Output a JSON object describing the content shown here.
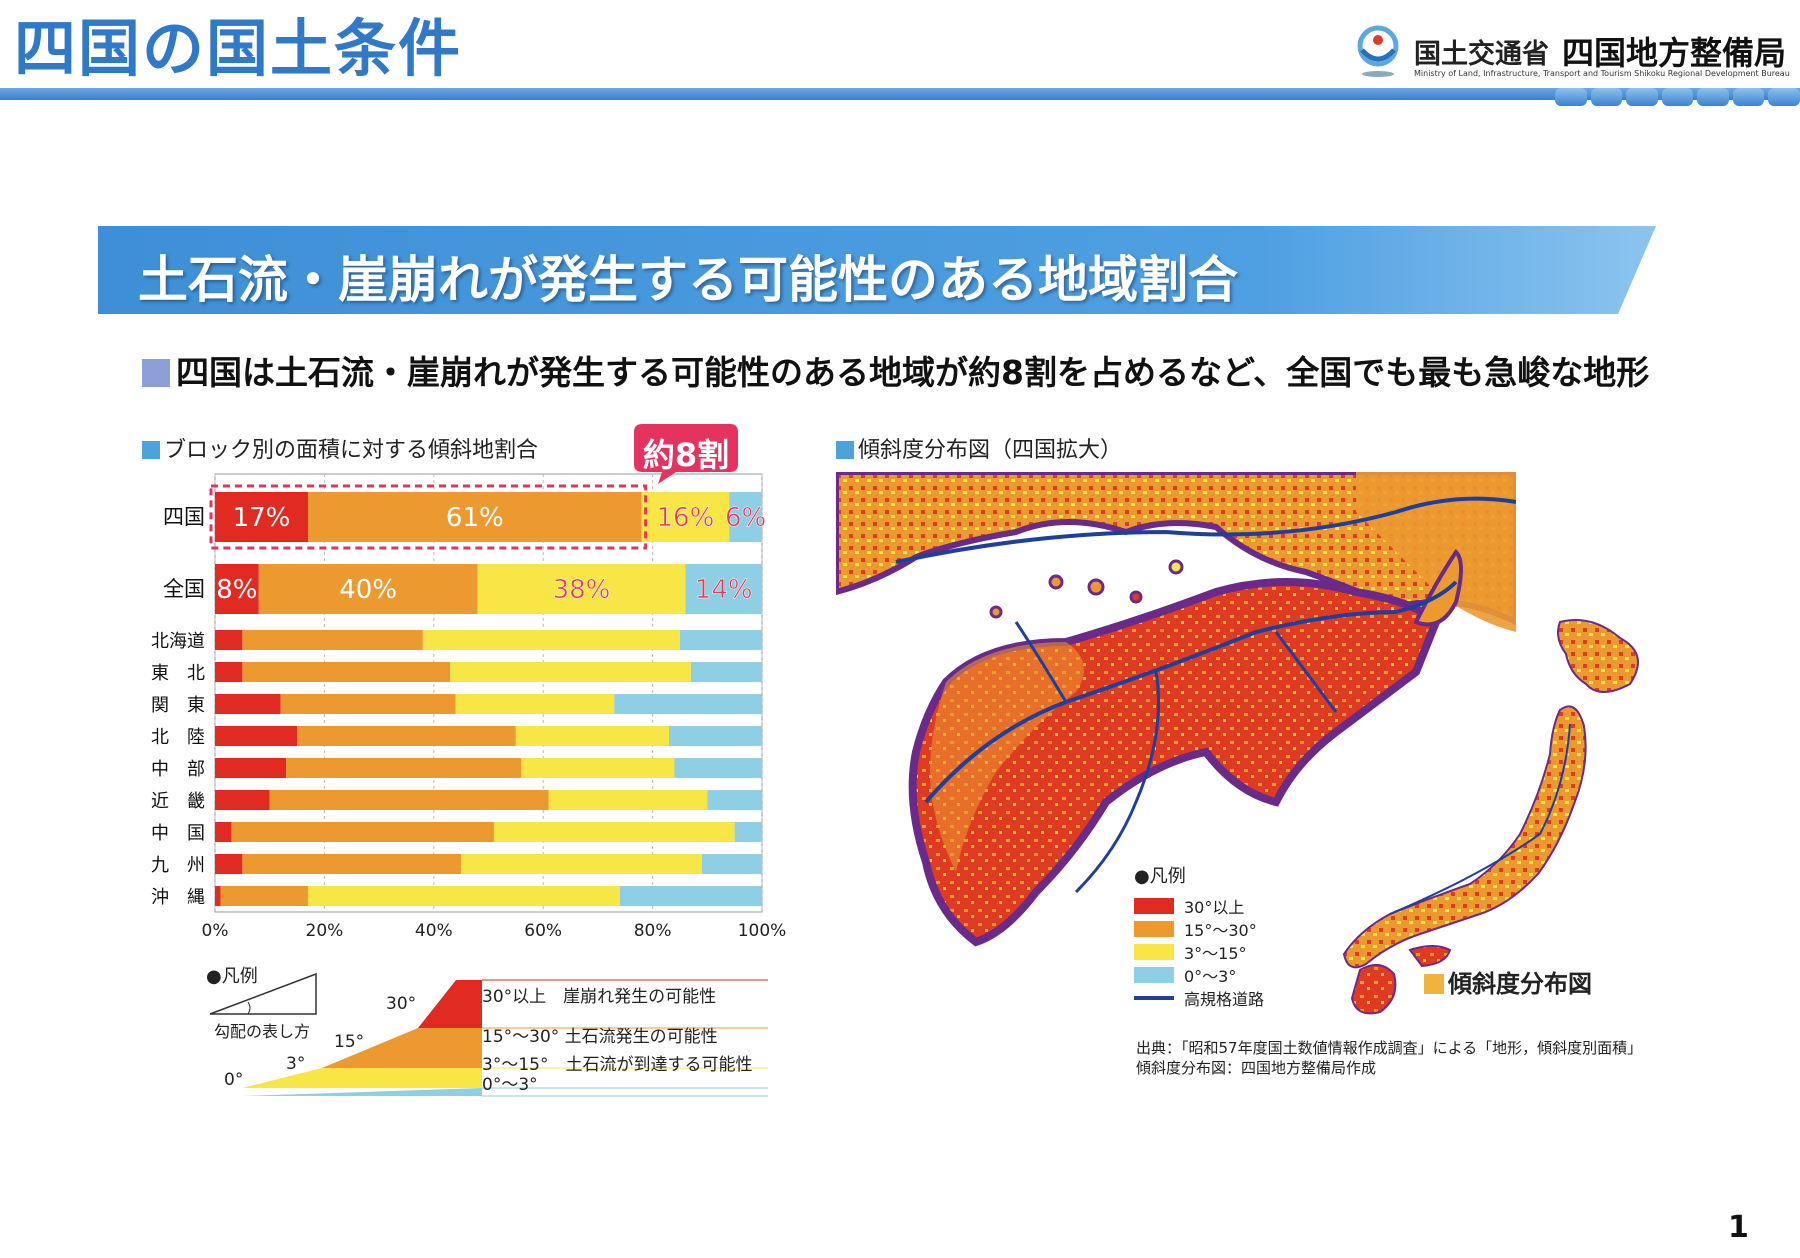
{
  "header": {
    "title": "四国の国土条件",
    "ministry": "国土交通省",
    "bureau": "四国地方整備局",
    "bureau_english": "Ministry of Land, Infrastructure, Transport and Tourism Shikoku Regional Development Bureau"
  },
  "banner": {
    "text": "土石流・崖崩れが発生する可能性のある地域割合"
  },
  "lead": {
    "text": "四国は土石流・崖崩れが発生する可能性のある地域が約8割を占めるなど、全国でも最も急峻な地形"
  },
  "left_panel": {
    "title": "ブロック別の面積に対する傾斜地割合",
    "callout": "約8割"
  },
  "right_panel": {
    "title": "傾斜度分布図（四国拡大）",
    "japan_label": "傾斜度分布図"
  },
  "chart_data": {
    "type": "bar",
    "orientation": "horizontal",
    "stacked": true,
    "percent": true,
    "title": "ブロック別の面積に対する傾斜地割合",
    "categories": [
      "四国",
      "全国",
      "北海道",
      "東　北",
      "関　東",
      "北　陸",
      "中　部",
      "近　畿",
      "中　国",
      "九　州",
      "沖　縄"
    ],
    "series": [
      {
        "name": "30°以上",
        "color": "#e02a22",
        "values": [
          17,
          8,
          5,
          5,
          12,
          15,
          13,
          10,
          3,
          5,
          1
        ]
      },
      {
        "name": "15°～30°",
        "color": "#ec9a30",
        "values": [
          61,
          40,
          33,
          38,
          32,
          40,
          43,
          51,
          48,
          40,
          16
        ]
      },
      {
        "name": "3°～15°",
        "color": "#f8e646",
        "values": [
          16,
          38,
          47,
          44,
          29,
          28,
          28,
          29,
          44,
          44,
          57
        ]
      },
      {
        "name": "0°～3°",
        "color": "#8ecfe6",
        "values": [
          6,
          14,
          15,
          13,
          27,
          17,
          16,
          10,
          5,
          11,
          26
        ]
      }
    ],
    "data_labels": {
      "四国": [
        "17%",
        "61%",
        "16%",
        "6%"
      ],
      "全国": [
        "8%",
        "40%",
        "38%",
        "14%"
      ]
    },
    "xticks": [
      "0%",
      "20%",
      "40%",
      "60%",
      "80%",
      "100%"
    ],
    "xlim": [
      0,
      100
    ]
  },
  "chart_legend": {
    "title": "●凡例",
    "how_to_read": "勾配の表し方",
    "angles": [
      "0°",
      "3°",
      "15°",
      "30°"
    ],
    "items": [
      "30°以上　崖崩れ発生の可能性",
      "15°～30° 土石流発生の可能性",
      "3°～15°　土石流が到達する可能性",
      "0°～3°"
    ]
  },
  "map_legend": {
    "title": "●凡例",
    "items": [
      {
        "label": "30°以上",
        "color": "#e02a22"
      },
      {
        "label": "15°～30°",
        "color": "#ec9a30"
      },
      {
        "label": "3°～15°",
        "color": "#f8e646"
      },
      {
        "label": "0°～3°",
        "color": "#8ecfe6"
      }
    ],
    "road_label": "高規格道路"
  },
  "source": {
    "line1": "出典：「昭和57年度国土数値情報作成調査」による「地形，傾斜度別面積」",
    "line2": "傾斜度分布図：四国地方整備局作成"
  },
  "page_number": "1"
}
